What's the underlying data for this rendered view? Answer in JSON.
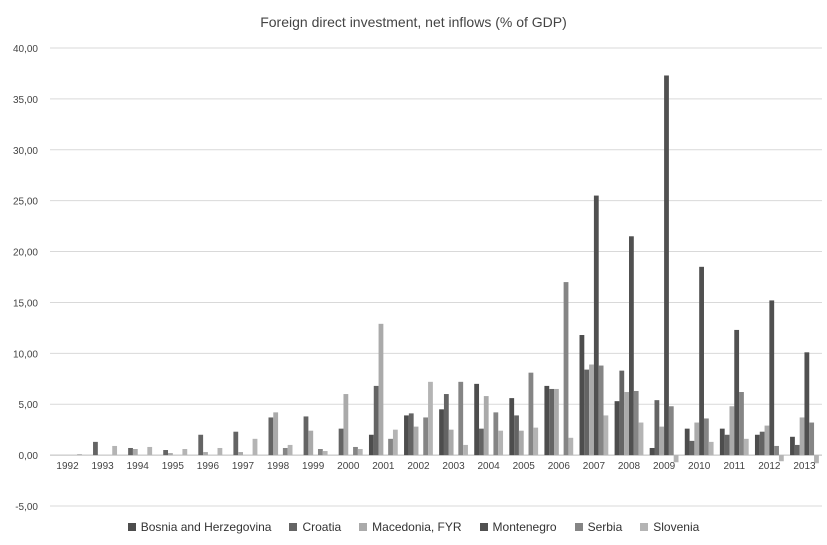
{
  "chart_data": {
    "type": "bar",
    "title": "Foreign direct investment, net inflows (% of GDP)",
    "xlabel": "",
    "ylabel": "",
    "ylim": [
      -5,
      40
    ],
    "yticks": [
      "-5,00",
      "0,00",
      "5,00",
      "10,00",
      "15,00",
      "20,00",
      "25,00",
      "30,00",
      "35,00",
      "40,00"
    ],
    "categories": [
      "1992",
      "1993",
      "1994",
      "1995",
      "1996",
      "1997",
      "1998",
      "1999",
      "2000",
      "2001",
      "2002",
      "2003",
      "2004",
      "2005",
      "2006",
      "2007",
      "2008",
      "2009",
      "2010",
      "2011",
      "2012",
      "2013"
    ],
    "legend_position": "bottom",
    "grid": true,
    "series": [
      {
        "name": "Bosnia and Herzegovina",
        "color": "#4d4d4d",
        "values": [
          null,
          null,
          null,
          null,
          null,
          null,
          null,
          null,
          null,
          2.0,
          3.9,
          4.5,
          7.0,
          5.6,
          6.8,
          11.8,
          5.3,
          0.7,
          2.6,
          2.6,
          2.0,
          1.8
        ]
      },
      {
        "name": "Croatia",
        "color": "#646464",
        "values": [
          null,
          1.3,
          0.7,
          0.5,
          2.0,
          2.3,
          3.7,
          3.8,
          2.6,
          6.8,
          4.1,
          6.0,
          2.6,
          3.9,
          6.5,
          8.4,
          8.3,
          5.4,
          1.4,
          2.0,
          2.3,
          1.0
        ]
      },
      {
        "name": "Macedonia, FYR",
        "color": "#aaaaaa",
        "values": [
          null,
          null,
          0.6,
          0.2,
          0.3,
          0.3,
          4.2,
          2.4,
          6.0,
          12.9,
          2.8,
          2.5,
          5.8,
          2.4,
          6.5,
          8.9,
          6.2,
          2.8,
          3.2,
          4.8,
          2.9,
          3.7
        ]
      },
      {
        "name": "Montenegro",
        "color": "#505050",
        "values": [
          null,
          null,
          null,
          null,
          null,
          null,
          null,
          null,
          null,
          null,
          null,
          null,
          null,
          null,
          null,
          25.5,
          21.5,
          37.3,
          18.5,
          12.3,
          15.2,
          10.1
        ]
      },
      {
        "name": "Serbia",
        "color": "#858585",
        "values": [
          null,
          null,
          null,
          null,
          null,
          null,
          0.7,
          0.6,
          0.8,
          1.6,
          3.7,
          7.2,
          4.2,
          8.1,
          17.0,
          8.8,
          6.3,
          4.8,
          3.6,
          6.2,
          0.9,
          3.2
        ]
      },
      {
        "name": "Slovenia",
        "color": "#b4b4b4",
        "values": [
          0.1,
          0.9,
          0.8,
          0.6,
          0.7,
          1.6,
          1.0,
          0.4,
          0.6,
          2.5,
          7.2,
          1.0,
          2.4,
          2.7,
          1.7,
          3.9,
          3.2,
          -0.7,
          1.3,
          1.6,
          -0.6,
          -0.8
        ]
      }
    ]
  }
}
